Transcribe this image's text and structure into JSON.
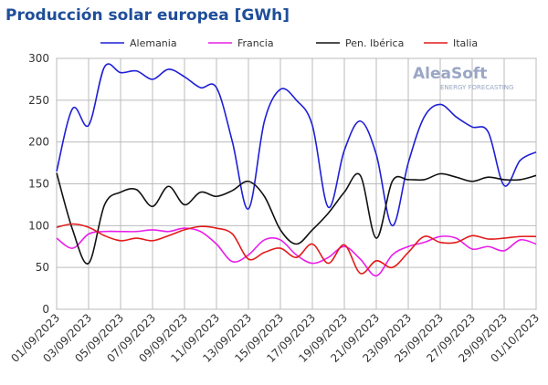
{
  "chart_data": {
    "type": "line",
    "title": "Producción solar europea [GWh]",
    "watermark": {
      "brand": "AleaSoft",
      "tagline": "ENERGY FORECASTING"
    },
    "categories": [
      "01/09/2023",
      null,
      "03/09/2023",
      null,
      "05/09/2023",
      null,
      "07/09/2023",
      null,
      "09/09/2023",
      null,
      "11/09/2023",
      null,
      "13/09/2023",
      null,
      "15/09/2023",
      null,
      "17/09/2023",
      null,
      "19/09/2023",
      null,
      "21/09/2023",
      null,
      "23/09/2023",
      null,
      "25/09/2023",
      null,
      "27/09/2023",
      null,
      "29/09/2023",
      null,
      "01/10/2023"
    ],
    "series": [
      {
        "name": "Alemania",
        "color": "#1f1fd6",
        "values": [
          165,
          240,
          220,
          290,
          283,
          285,
          275,
          287,
          278,
          265,
          265,
          200,
          120,
          225,
          263,
          250,
          220,
          122,
          190,
          225,
          185,
          100,
          175,
          230,
          245,
          230,
          218,
          212,
          148,
          178,
          188
        ]
      },
      {
        "name": "Francia",
        "color": "#e81ee8",
        "values": [
          85,
          73,
          90,
          93,
          93,
          93,
          95,
          93,
          97,
          93,
          78,
          57,
          65,
          83,
          83,
          65,
          55,
          62,
          75,
          60,
          40,
          65,
          75,
          80,
          87,
          85,
          72,
          75,
          70,
          83,
          78
        ]
      },
      {
        "name": "Pen. Ibérica",
        "color": "#111111",
        "values": [
          163,
          95,
          55,
          125,
          140,
          143,
          123,
          147,
          125,
          140,
          135,
          142,
          153,
          135,
          95,
          78,
          95,
          115,
          140,
          160,
          85,
          153,
          155,
          155,
          162,
          158,
          153,
          158,
          155,
          155,
          160
        ]
      },
      {
        "name": "Italia",
        "color": "#e31a1a",
        "values": [
          98,
          102,
          98,
          88,
          82,
          85,
          82,
          88,
          95,
          99,
          97,
          90,
          60,
          68,
          73,
          62,
          78,
          55,
          77,
          43,
          58,
          50,
          68,
          87,
          80,
          80,
          88,
          84,
          85,
          87,
          87
        ]
      }
    ],
    "ylim": [
      0,
      300
    ],
    "yticks": [
      0,
      50,
      100,
      150,
      200,
      250,
      300
    ],
    "grid": true
  }
}
